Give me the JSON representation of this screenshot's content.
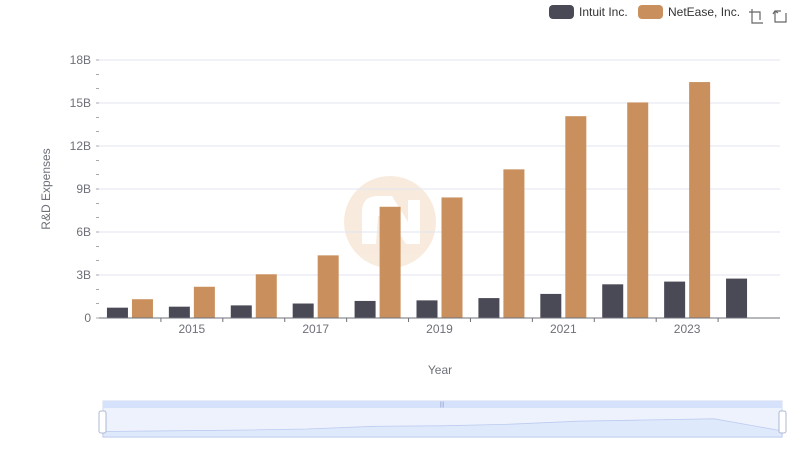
{
  "chart_data": {
    "type": "bar",
    "title": "",
    "xlabel": "Year",
    "ylabel": "R&D Expenses",
    "ylim": [
      0,
      18
    ],
    "yticks": [
      "0",
      "3B",
      "6B",
      "9B",
      "12B",
      "15B",
      "18B"
    ],
    "categories": [
      "2014",
      "2015",
      "2016",
      "2017",
      "2018",
      "2019",
      "2020",
      "2021",
      "2022",
      "2023",
      "2024"
    ],
    "xtick_labels": [
      "2015",
      "2017",
      "2019",
      "2021",
      "2023"
    ],
    "units": "billions",
    "series": [
      {
        "name": "Intuit Inc.",
        "color": "#4a4a56",
        "values": [
          0.72,
          0.79,
          0.88,
          1.01,
          1.19,
          1.23,
          1.39,
          1.68,
          2.35,
          2.54,
          2.75
        ]
      },
      {
        "name": "NetEase, Inc.",
        "color": "#c98f5c",
        "values": [
          1.31,
          2.18,
          3.05,
          4.37,
          7.76,
          8.41,
          10.37,
          14.08,
          15.04,
          16.46,
          null
        ]
      }
    ],
    "grid": true,
    "legend_position": "top-right"
  },
  "toolbar": {
    "zoom_icon": "data-zoom-icon",
    "reset_icon": "restore-icon"
  },
  "colors": {
    "axis": "#6e7079",
    "grid": "#e0e6f1",
    "slider_fill": "#d6e2fb",
    "slider_border": "#d2dbee",
    "watermark": "#f7e9da"
  }
}
